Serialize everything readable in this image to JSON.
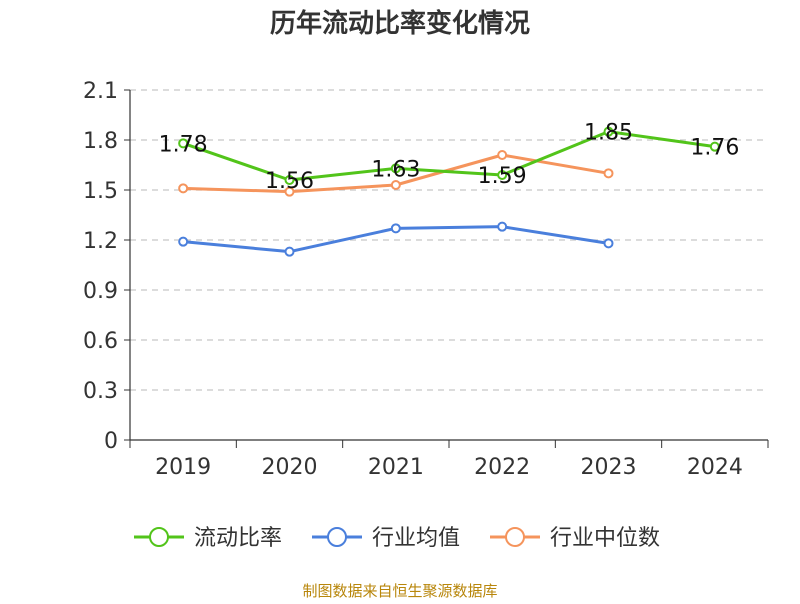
{
  "chart_data": {
    "type": "line",
    "title": "历年流动比率变化情况",
    "xlabel": "",
    "ylabel": "",
    "categories": [
      "2019",
      "2020",
      "2021",
      "2022",
      "2023",
      "2024"
    ],
    "ylim": [
      0,
      2.1
    ],
    "yticks": [
      "0",
      "0.3",
      "0.6",
      "0.9",
      "1.2",
      "1.5",
      "1.8",
      "2.1"
    ],
    "grid": true,
    "legend_position": "bottom",
    "series": [
      {
        "name": "流动比率",
        "color": "#52c41a",
        "values": [
          1.78,
          1.56,
          1.63,
          1.59,
          1.85,
          1.76
        ],
        "labels": [
          "1.78",
          "1.56",
          "1.63",
          "1.59",
          "1.85",
          "1.76"
        ]
      },
      {
        "name": "行业均值",
        "color": "#4a7fdc",
        "values": [
          1.19,
          1.13,
          1.27,
          1.28,
          1.18,
          null
        ]
      },
      {
        "name": "行业中位数",
        "color": "#f5945c",
        "values": [
          1.51,
          1.49,
          1.53,
          1.71,
          1.6,
          null
        ]
      }
    ]
  },
  "footer": {
    "source": "制图数据来自恒生聚源数据库"
  }
}
